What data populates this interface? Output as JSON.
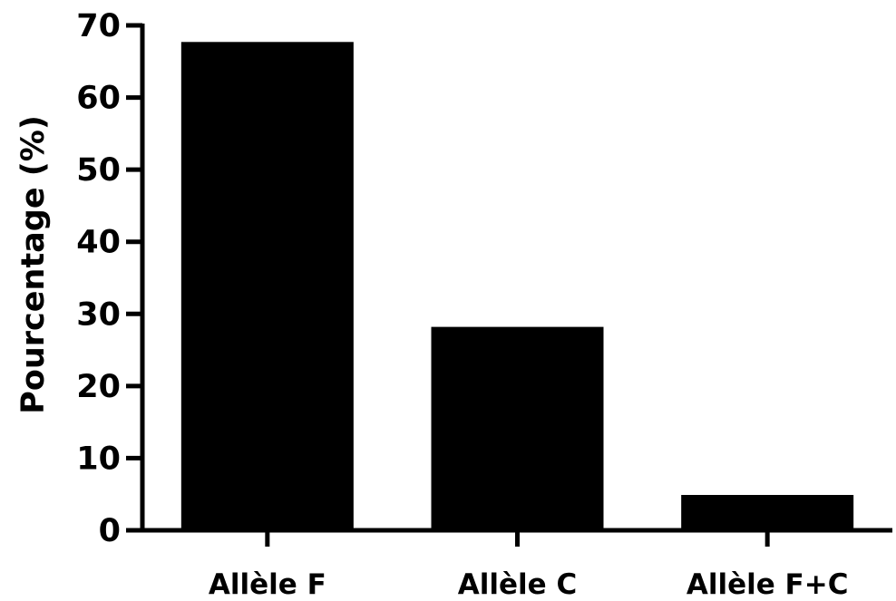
{
  "chart_data": {
    "type": "bar",
    "title": "",
    "xlabel": "",
    "ylabel": "Pourcentage (%)",
    "categories": [
      "Allèle F",
      "Allèle C",
      "Allèle F+C"
    ],
    "values": [
      67.7,
      28.2,
      4.9
    ],
    "ylim": [
      0,
      70
    ],
    "yticks": [
      0,
      10,
      20,
      30,
      40,
      50,
      60,
      70
    ],
    "grid": false,
    "legend": "none",
    "bar_color": "#000000"
  }
}
